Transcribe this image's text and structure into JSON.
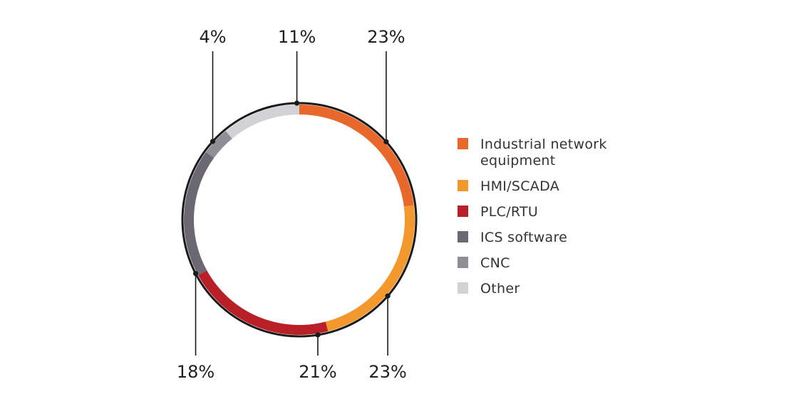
{
  "chart_data": {
    "type": "donut",
    "title": "",
    "series": [
      {
        "name": "Industrial network equipment",
        "value": 23,
        "label": "23%",
        "color": "#e8672a"
      },
      {
        "name": "HMI/SCADA",
        "value": 23,
        "label": "23%",
        "color": "#f3982d"
      },
      {
        "name": "PLC/RTU",
        "value": 21,
        "label": "21%",
        "color": "#b91f26"
      },
      {
        "name": "ICS software",
        "value": 18,
        "label": "18%",
        "color": "#6b6874"
      },
      {
        "name": "CNC",
        "value": 4,
        "label": "4%",
        "color": "#8d8e96"
      },
      {
        "name": "Other",
        "value": 11,
        "label": "11%",
        "color": "#d2d2d4"
      }
    ]
  },
  "legend": {
    "items": [
      {
        "label": "Industrial network equipment",
        "color": "#e8672a"
      },
      {
        "label": "HMI/SCADA",
        "color": "#f3982d"
      },
      {
        "label": "PLC/RTU",
        "color": "#b91f26"
      },
      {
        "label": "ICS software",
        "color": "#6b6874"
      },
      {
        "label": "CNC",
        "color": "#8d8e96"
      },
      {
        "label": "Other",
        "color": "#d2d2d4"
      }
    ]
  }
}
